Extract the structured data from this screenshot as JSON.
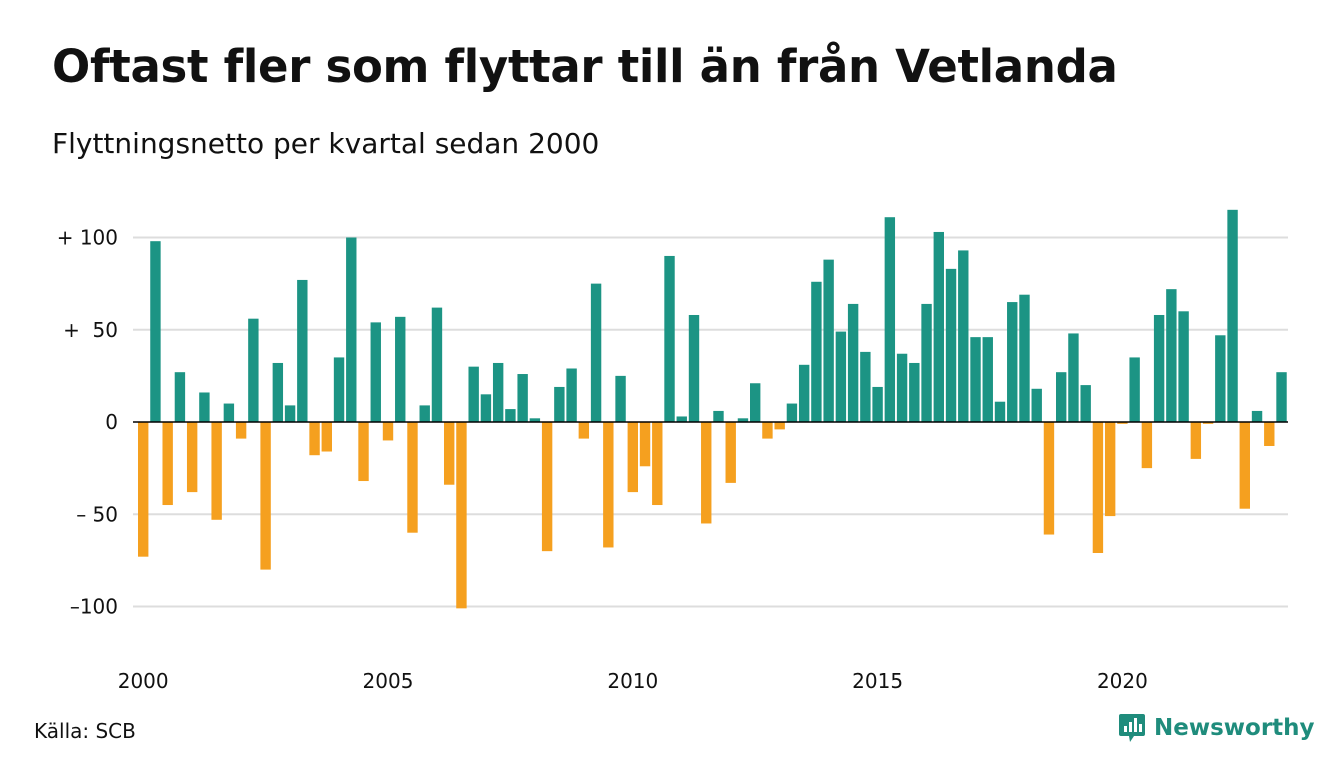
{
  "title": "Oftast fler som flyttar till än från Vetlanda",
  "subtitle": "Flyttningsnetto per kvartal sedan 2000",
  "source": "Källa: SCB",
  "brand": {
    "name": "Newsworthy",
    "icon": "chart-bubble-icon"
  },
  "colors": {
    "positive": "#1c9484",
    "negative": "#f5a01f",
    "grid": "#dddddd",
    "zero_line": "#000000"
  },
  "chart_data": {
    "type": "bar",
    "title": "Oftast fler som flyttar till än från Vetlanda",
    "subtitle": "Flyttningsnetto per kvartal sedan 2000",
    "xlabel": "",
    "ylabel": "",
    "ylim": [
      -115,
      118
    ],
    "yticks": [
      {
        "value": 100,
        "label": "+ 100"
      },
      {
        "value": 50,
        "label": "+  50"
      },
      {
        "value": 0,
        "label": "0"
      },
      {
        "value": -50,
        "label": "– 50"
      },
      {
        "value": -100,
        "label": "–100"
      }
    ],
    "xticks": [
      {
        "year": 2000,
        "label": "2000"
      },
      {
        "year": 2005,
        "label": "2005"
      },
      {
        "year": 2010,
        "label": "2010"
      },
      {
        "year": 2015,
        "label": "2015"
      },
      {
        "year": 2020,
        "label": "2020"
      }
    ],
    "grid": true,
    "legend": "none",
    "start": "2000 Q1",
    "frequency": "quarterly",
    "values": [
      -73,
      98,
      -45,
      27,
      -38,
      16,
      -53,
      10,
      -9,
      56,
      -80,
      32,
      9,
      77,
      -18,
      -16,
      35,
      100,
      -32,
      54,
      -10,
      57,
      -60,
      9,
      62,
      -34,
      -101,
      30,
      15,
      32,
      7,
      26,
      2,
      -70,
      19,
      29,
      -9,
      75,
      -68,
      25,
      -38,
      -24,
      -45,
      90,
      3,
      58,
      -55,
      6,
      -33,
      2,
      21,
      -9,
      -4,
      10,
      31,
      76,
      88,
      49,
      64,
      38,
      19,
      111,
      37,
      32,
      64,
      103,
      83,
      93,
      46,
      46,
      11,
      65,
      69,
      18,
      -61,
      27,
      48,
      20,
      -71,
      -51,
      -1,
      35,
      -25,
      58,
      72,
      60,
      -20,
      -1,
      47,
      115,
      -47,
      6,
      -13,
      27
    ]
  }
}
